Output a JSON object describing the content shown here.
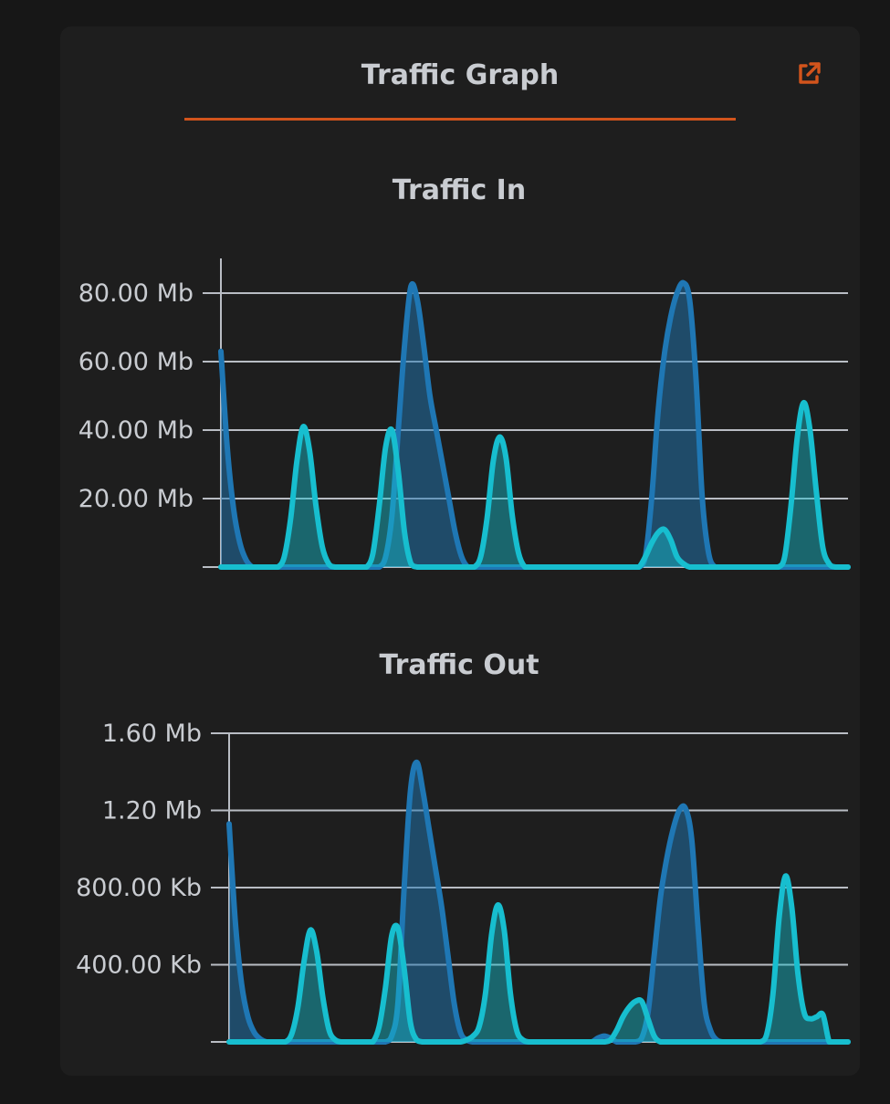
{
  "card": {
    "title": "Traffic Graph",
    "popout_icon": "external-link-icon"
  },
  "colors": {
    "background": "#171717",
    "card": "#1e1e1e",
    "accent": "#d2541c",
    "series_blue": "#1f77b4",
    "series_cyan": "#17becf",
    "grid": "#b9bdc4",
    "text": "#c9ccd1"
  },
  "chart_data": [
    {
      "type": "area",
      "title": "Traffic In",
      "unit": "Mb",
      "ylim": [
        0,
        90
      ],
      "yticks": [
        {
          "value": 0,
          "label": ""
        },
        {
          "value": 20,
          "label": "20.00 Mb"
        },
        {
          "value": 40,
          "label": "40.00 Mb"
        },
        {
          "value": 60,
          "label": "60.00 Mb"
        },
        {
          "value": 80,
          "label": "80.00 Mb"
        }
      ],
      "grid": true,
      "x": [
        0,
        1,
        2,
        3,
        4,
        5,
        6,
        7,
        8,
        9,
        10,
        11,
        12,
        13,
        14,
        15,
        16,
        17,
        18,
        19,
        20,
        21,
        22,
        23,
        24,
        25,
        26,
        27,
        28,
        29,
        30,
        31,
        32,
        33,
        34,
        35,
        36,
        37,
        38,
        39,
        40,
        41,
        42,
        43,
        44,
        45,
        46,
        47,
        48,
        49,
        50,
        51,
        52,
        53,
        54,
        55,
        56,
        57,
        58,
        59,
        60,
        61,
        62,
        63,
        64,
        65,
        66,
        67,
        68,
        69,
        70,
        71,
        72,
        73,
        74,
        75,
        76,
        77,
        78,
        79,
        80,
        81,
        82,
        83,
        84,
        85,
        86,
        87,
        88,
        89,
        90,
        91,
        92,
        93,
        94,
        95,
        96,
        97,
        98,
        99
      ],
      "series": [
        {
          "color": "#1f77b4",
          "values": [
            63,
            35,
            17,
            7,
            2,
            0,
            0,
            0,
            0,
            0,
            0,
            0,
            0,
            0,
            0,
            0,
            0,
            0,
            0,
            0,
            0,
            0,
            0,
            0,
            0,
            0,
            3,
            15,
            40,
            65,
            82,
            78,
            65,
            50,
            40,
            30,
            20,
            10,
            3,
            0,
            0,
            0,
            0,
            0,
            0,
            0,
            0,
            0,
            0,
            0,
            0,
            0,
            0,
            0,
            0,
            0,
            0,
            0,
            0,
            0,
            0,
            0,
            0,
            0,
            0,
            0,
            0,
            3,
            20,
            45,
            62,
            73,
            80,
            83,
            78,
            55,
            20,
            4,
            0,
            0,
            0,
            0,
            0,
            0,
            0,
            0,
            0,
            0,
            0,
            0,
            0,
            0,
            0,
            0,
            0,
            0,
            0,
            0,
            0,
            0
          ]
        },
        {
          "color": "#17becf",
          "values": [
            0,
            0,
            0,
            0,
            0,
            0,
            0,
            0,
            0,
            0,
            3,
            14,
            31,
            41,
            34,
            18,
            6,
            1,
            0,
            0,
            0,
            0,
            0,
            0,
            4,
            18,
            35,
            40,
            28,
            10,
            1,
            0,
            0,
            0,
            0,
            0,
            0,
            0,
            0,
            0,
            0,
            3,
            14,
            31,
            38,
            32,
            15,
            4,
            0,
            0,
            0,
            0,
            0,
            0,
            0,
            0,
            0,
            0,
            0,
            0,
            0,
            0,
            0,
            0,
            0,
            0,
            0,
            3,
            7,
            10,
            11,
            8,
            3,
            1,
            0,
            0,
            0,
            0,
            0,
            0,
            0,
            0,
            0,
            0,
            0,
            0,
            0,
            0,
            0,
            3,
            18,
            38,
            48,
            40,
            22,
            6,
            1,
            0,
            0,
            0
          ]
        }
      ]
    },
    {
      "type": "area",
      "title": "Traffic Out",
      "unit": "Kb",
      "ylim": [
        0,
        1600
      ],
      "yticks": [
        {
          "value": 0,
          "label": ""
        },
        {
          "value": 400,
          "label": "400.00 Kb"
        },
        {
          "value": 800,
          "label": "800.00 Kb"
        },
        {
          "value": 1200,
          "label": "1.20 Mb"
        },
        {
          "value": 1600,
          "label": "1.60 Mb"
        }
      ],
      "grid": true,
      "x": [
        0,
        1,
        2,
        3,
        4,
        5,
        6,
        7,
        8,
        9,
        10,
        11,
        12,
        13,
        14,
        15,
        16,
        17,
        18,
        19,
        20,
        21,
        22,
        23,
        24,
        25,
        26,
        27,
        28,
        29,
        30,
        31,
        32,
        33,
        34,
        35,
        36,
        37,
        38,
        39,
        40,
        41,
        42,
        43,
        44,
        45,
        46,
        47,
        48,
        49,
        50,
        51,
        52,
        53,
        54,
        55,
        56,
        57,
        58,
        59,
        60,
        61,
        62,
        63,
        64,
        65,
        66,
        67,
        68,
        69,
        70,
        71,
        72,
        73,
        74,
        75,
        76,
        77,
        78,
        79,
        80,
        81,
        82,
        83,
        84,
        85,
        86,
        87,
        88,
        89,
        90,
        91,
        92,
        93,
        94,
        95,
        96,
        97,
        98,
        99
      ],
      "series": [
        {
          "color": "#1f77b4",
          "values": [
            1130,
            620,
            300,
            130,
            50,
            15,
            0,
            0,
            0,
            0,
            0,
            0,
            0,
            0,
            0,
            0,
            0,
            0,
            0,
            0,
            0,
            0,
            0,
            0,
            0,
            0,
            30,
            200,
            800,
            1300,
            1450,
            1300,
            1100,
            900,
            700,
            450,
            200,
            50,
            10,
            0,
            0,
            0,
            0,
            0,
            0,
            0,
            0,
            0,
            0,
            0,
            0,
            0,
            0,
            0,
            0,
            0,
            0,
            0,
            0,
            20,
            30,
            20,
            0,
            0,
            0,
            0,
            20,
            150,
            450,
            750,
            950,
            1100,
            1200,
            1210,
            1050,
            600,
            200,
            60,
            10,
            0,
            0,
            0,
            0,
            0,
            0,
            0,
            0,
            0,
            0,
            0,
            0,
            0,
            0,
            0,
            0,
            0,
            0,
            0,
            0,
            0
          ]
        },
        {
          "color": "#17becf",
          "values": [
            0,
            0,
            0,
            0,
            0,
            0,
            0,
            0,
            0,
            0,
            40,
            180,
            420,
            580,
            470,
            230,
            60,
            10,
            0,
            0,
            0,
            0,
            0,
            0,
            80,
            280,
            550,
            590,
            380,
            100,
            10,
            0,
            0,
            0,
            0,
            0,
            0,
            0,
            10,
            30,
            80,
            250,
            560,
            710,
            580,
            250,
            60,
            10,
            0,
            0,
            0,
            0,
            0,
            0,
            0,
            0,
            0,
            0,
            0,
            0,
            0,
            10,
            60,
            130,
            180,
            210,
            210,
            120,
            30,
            0,
            0,
            0,
            0,
            0,
            0,
            0,
            0,
            0,
            0,
            0,
            0,
            0,
            0,
            0,
            0,
            0,
            40,
            250,
            650,
            860,
            700,
            350,
            150,
            120,
            130,
            140,
            0,
            0,
            0,
            0
          ]
        }
      ]
    }
  ]
}
